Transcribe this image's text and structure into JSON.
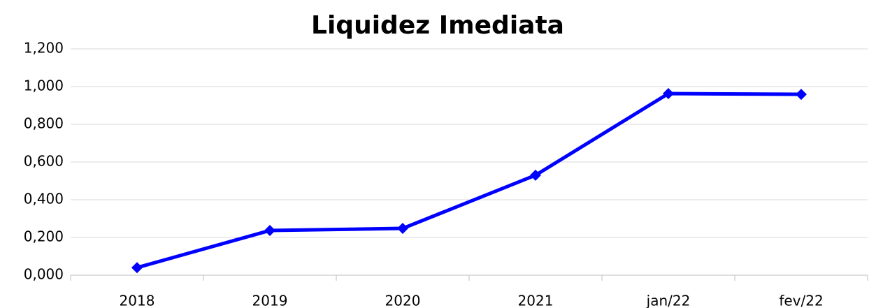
{
  "chart_data": {
    "type": "line",
    "title": "Liquidez Imediata",
    "categories": [
      "2018",
      "2019",
      "2020",
      "2021",
      "jan/22",
      "fev/22"
    ],
    "series": [
      {
        "name": "Liquidez Imediata",
        "color": "#0000ff",
        "values": [
          0.04,
          0.237,
          0.248,
          0.53,
          0.963,
          0.959
        ]
      }
    ],
    "ylim": [
      0,
      1.2
    ],
    "yticks": [
      {
        "value": 0,
        "label": "0,000"
      },
      {
        "value": 0.2,
        "label": "0,200"
      },
      {
        "value": 0.4,
        "label": "0,400"
      },
      {
        "value": 0.6,
        "label": "0,600"
      },
      {
        "value": 0.8,
        "label": "0,800"
      },
      {
        "value": 1.0,
        "label": "1,000"
      },
      {
        "value": 1.2,
        "label": "1,200"
      }
    ],
    "grid": true
  }
}
